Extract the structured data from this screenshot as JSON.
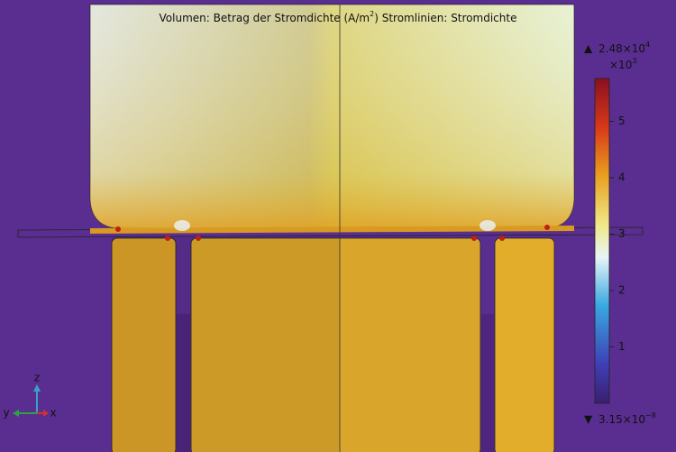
{
  "title": {
    "prefix": "Volumen: Betrag der Stromdichte (A/m",
    "sup": "2",
    "suffix": ")  Stromlinien: Stromdichte"
  },
  "colorbar": {
    "range": [
      0,
      5.76
    ],
    "ticks": [
      1,
      2,
      3,
      4,
      5
    ],
    "scale_base": "×10",
    "scale_exp": "3",
    "max": {
      "mantissa": "2.48×10",
      "exp": "4"
    },
    "min": {
      "mantissa": "3.15×10",
      "exp": "−8"
    }
  },
  "axes": {
    "z": "z",
    "y": "y",
    "x": "x"
  }
}
